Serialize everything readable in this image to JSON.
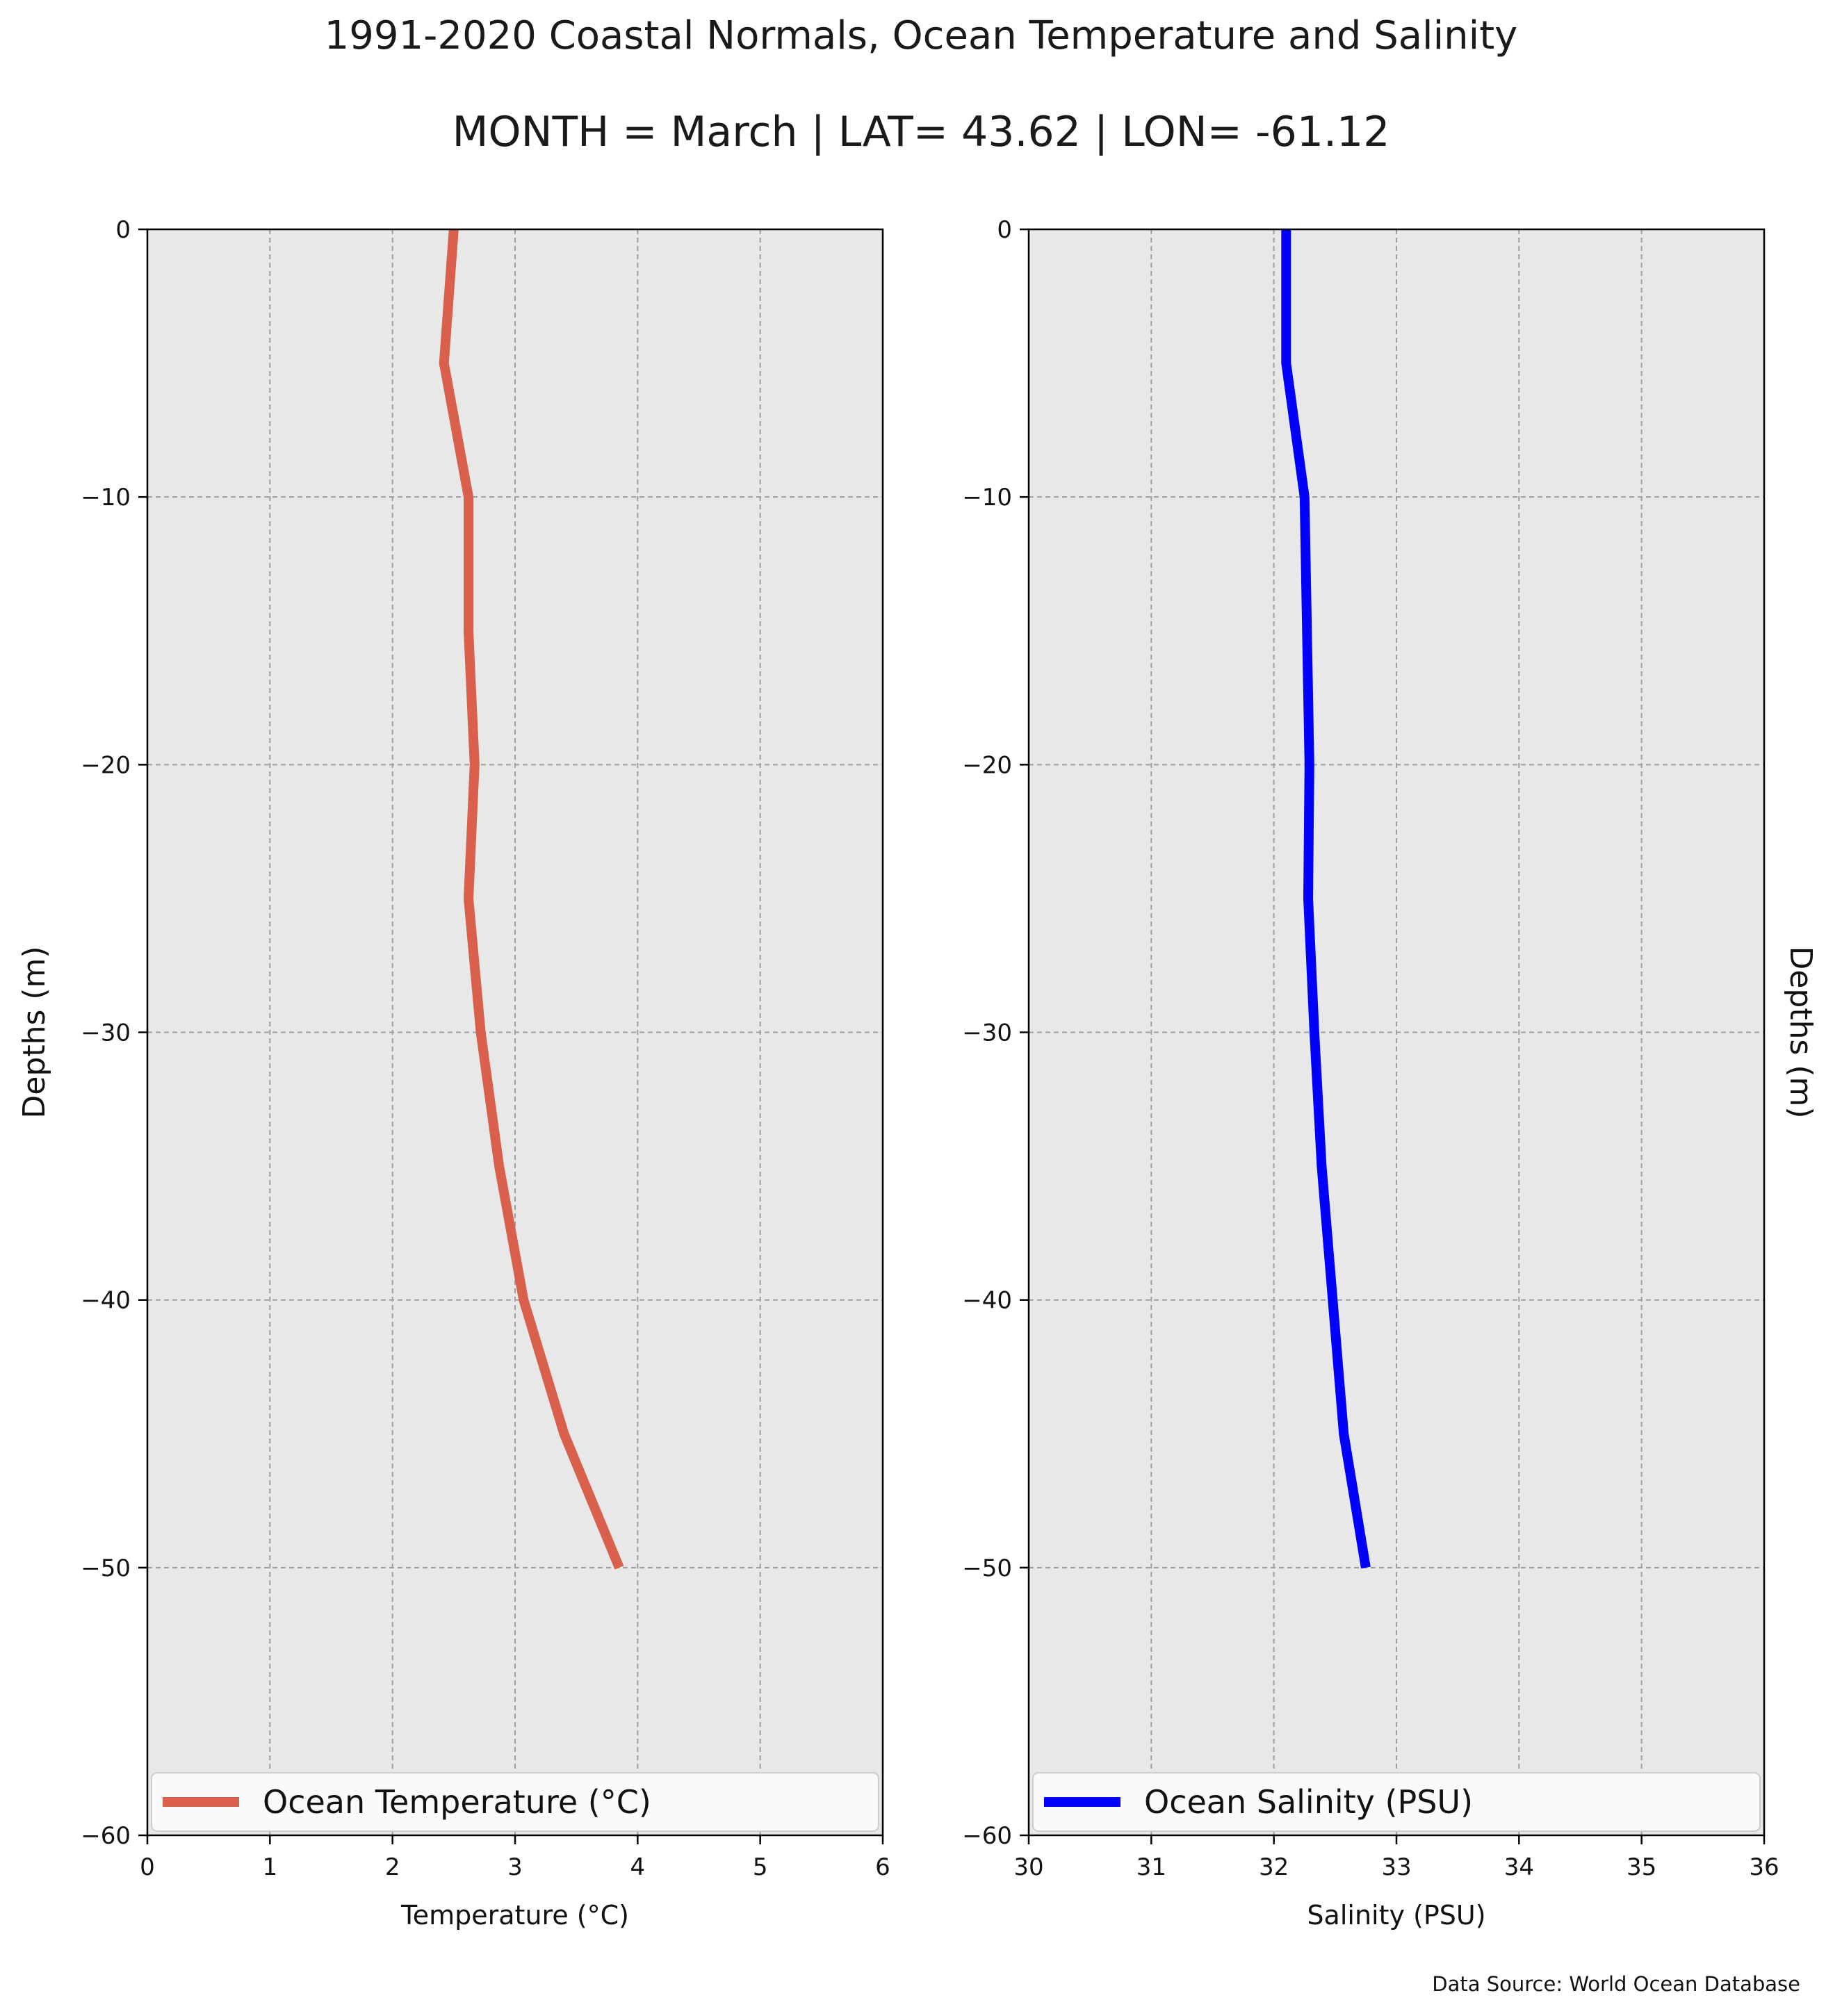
{
  "figure": {
    "title": "1991-2020 Coastal Normals, Ocean Temperature and Salinity",
    "subtitle": "MONTH = March | LAT= 43.62 | LON= -61.12",
    "source_note": "Data Source: World Ocean Database",
    "background": "#e8e8e8",
    "grid_color": "#9e9e9e"
  },
  "chart_data": [
    {
      "type": "line",
      "xlabel": "Temperature (°C)",
      "ylabel": "Depths (m)",
      "xlim": [
        0,
        6
      ],
      "ylim": [
        -60,
        0
      ],
      "xticks": [
        0,
        1,
        2,
        3,
        4,
        5,
        6
      ],
      "yticks": [
        0,
        -10,
        -20,
        -30,
        -40,
        -50,
        -60
      ],
      "grid": true,
      "legend_position": "bottom",
      "series": [
        {
          "name": "Ocean Temperature (°C)",
          "color": "#d9604c",
          "x": [
            2.5,
            2.42,
            2.62,
            2.62,
            2.67,
            2.62,
            2.72,
            2.87,
            3.07,
            3.4,
            3.85
          ],
          "y": [
            0,
            -5,
            -10,
            -15,
            -20,
            -25,
            -30,
            -35,
            -40,
            -45,
            -50
          ]
        }
      ]
    },
    {
      "type": "line",
      "xlabel": "Salinity (PSU)",
      "ylabel": "Depths (m)",
      "xlim": [
        30,
        36
      ],
      "ylim": [
        -60,
        0
      ],
      "xticks": [
        30,
        31,
        32,
        33,
        34,
        35,
        36
      ],
      "yticks": [
        0,
        -10,
        -20,
        -30,
        -40,
        -50,
        -60
      ],
      "grid": true,
      "legend_position": "bottom",
      "series": [
        {
          "name": "Ocean Salinity (PSU)",
          "color": "#0000ff",
          "x": [
            32.1,
            32.1,
            32.25,
            32.27,
            32.29,
            32.28,
            32.33,
            32.39,
            32.48,
            32.57,
            32.75
          ],
          "y": [
            0,
            -5,
            -10,
            -15,
            -20,
            -25,
            -30,
            -35,
            -40,
            -45,
            -50
          ]
        }
      ]
    }
  ]
}
